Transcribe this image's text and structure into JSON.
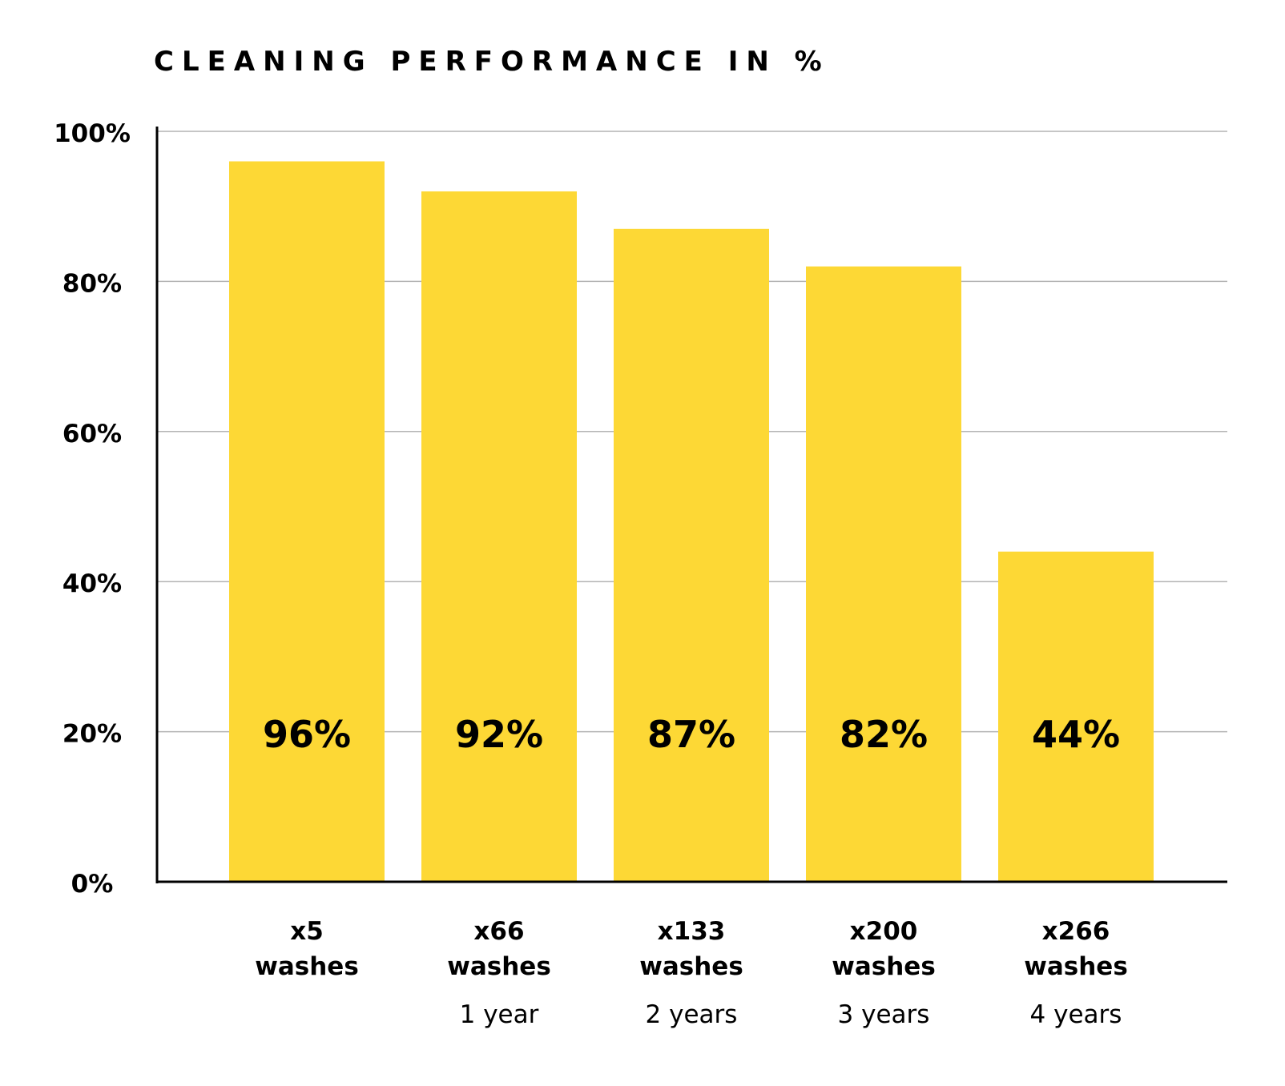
{
  "chart_data": {
    "type": "bar",
    "title": "CLEANING PERFORMANCE IN %",
    "xlabel": "",
    "ylabel": "",
    "ylim": [
      0,
      100
    ],
    "y_ticks": [
      {
        "value": 0,
        "label": "0%"
      },
      {
        "value": 20,
        "label": "20%"
      },
      {
        "value": 40,
        "label": "40%"
      },
      {
        "value": 60,
        "label": "60%"
      },
      {
        "value": 80,
        "label": "80%"
      },
      {
        "value": 100,
        "label": "100%"
      }
    ],
    "categories": [
      {
        "line1": "x5",
        "line2": "washes",
        "line3": ""
      },
      {
        "line1": "x66",
        "line2": "washes",
        "line3": "1 year"
      },
      {
        "line1": "x133",
        "line2": "washes",
        "line3": "2 years"
      },
      {
        "line1": "x200",
        "line2": "washes",
        "line3": "3 years"
      },
      {
        "line1": "x266",
        "line2": "washes",
        "line3": "4 years"
      }
    ],
    "values": [
      96,
      92,
      87,
      82,
      44
    ],
    "data_labels": [
      "96%",
      "92%",
      "87%",
      "82%",
      "44%"
    ],
    "bar_color": "#FDD835",
    "grid": true,
    "legend": "none"
  }
}
